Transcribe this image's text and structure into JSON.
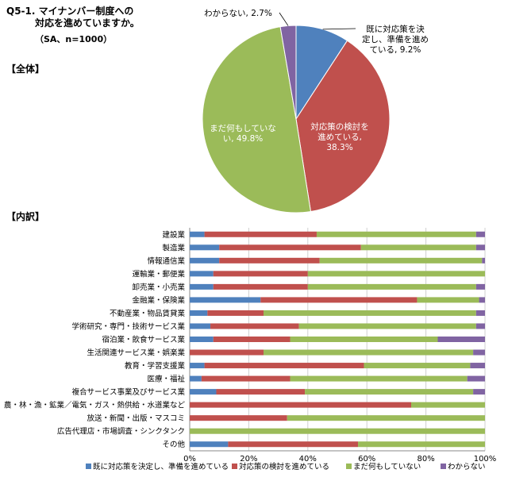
{
  "header": {
    "title_line1": "Q5-1.  マイナンバー制度への",
    "title_line2": "対応を進めていますか。",
    "subtitle": "（SA、n=1000）",
    "section_overall": "【全体】",
    "section_breakdown": "【内訳】"
  },
  "chart_data": [
    {
      "type": "pie",
      "slices": [
        {
          "name": "既に対応策を決定し、準備を進めている",
          "value": 9.2,
          "color": "#4F81BD",
          "label_lines": [
            "既に対応策を決",
            "定し、準備を進め",
            "ている, 9.2%"
          ]
        },
        {
          "name": "対応策の検討を進めている",
          "value": 38.3,
          "color": "#C0504D",
          "label_lines": [
            "対応策の検討を",
            "進めている,",
            "38.3%"
          ]
        },
        {
          "name": "まだ何もしていない",
          "value": 49.8,
          "color": "#9BBB59",
          "label_lines": [
            "まだ何もしていな",
            "い, 49.8%"
          ]
        },
        {
          "name": "わからない",
          "value": 2.7,
          "color": "#8064A2",
          "label_lines": [
            "わからない, 2.7%"
          ]
        }
      ]
    },
    {
      "type": "bar",
      "orientation": "horizontal",
      "stacked": true,
      "categories": [
        "建設業",
        "製造業",
        "情報通信業",
        "運輸業・郵便業",
        "卸売業・小売業",
        "金融業・保険業",
        "不動産業・物品賃貸業",
        "学術研究・専門・技術サービス業",
        "宿泊業・飲食サービス業",
        "生活関連サービス業・娯楽業",
        "教育・学習支援業",
        "医療・福祉",
        "複合サービス事業及びサービス業",
        "農・林・漁・鉱業／電気・ガス・熱供給・水道業など",
        "放送・新聞・出版・マスコミ",
        "広告代理店・市場調査・シンクタンク",
        "その他"
      ],
      "series": [
        {
          "name": "既に対応策を決定し、準備を進めている",
          "color": "#4F81BD",
          "values": [
            5,
            10,
            10,
            8,
            8,
            24,
            6,
            7,
            8,
            0,
            5,
            4,
            9,
            0,
            0,
            0,
            13
          ]
        },
        {
          "name": "対応策の検討を進めている",
          "color": "#C0504D",
          "values": [
            38,
            48,
            34,
            32,
            32,
            53,
            19,
            30,
            26,
            25,
            54,
            30,
            30,
            75,
            33,
            0,
            44
          ]
        },
        {
          "name": "まだ何もしていない",
          "color": "#9BBB59",
          "values": [
            54,
            39,
            55,
            60,
            57,
            21,
            72,
            60,
            50,
            71,
            36,
            60,
            57,
            25,
            67,
            100,
            43
          ]
        },
        {
          "name": "わからない",
          "color": "#8064A2",
          "values": [
            3,
            3,
            1,
            0,
            3,
            2,
            3,
            3,
            16,
            4,
            5,
            6,
            4,
            0,
            0,
            0,
            0
          ]
        }
      ],
      "xlim": [
        0,
        100
      ],
      "xticks": [
        "0%",
        "20%",
        "40%",
        "60%",
        "80%",
        "100%"
      ],
      "grid": true,
      "legend": "bottom"
    }
  ]
}
